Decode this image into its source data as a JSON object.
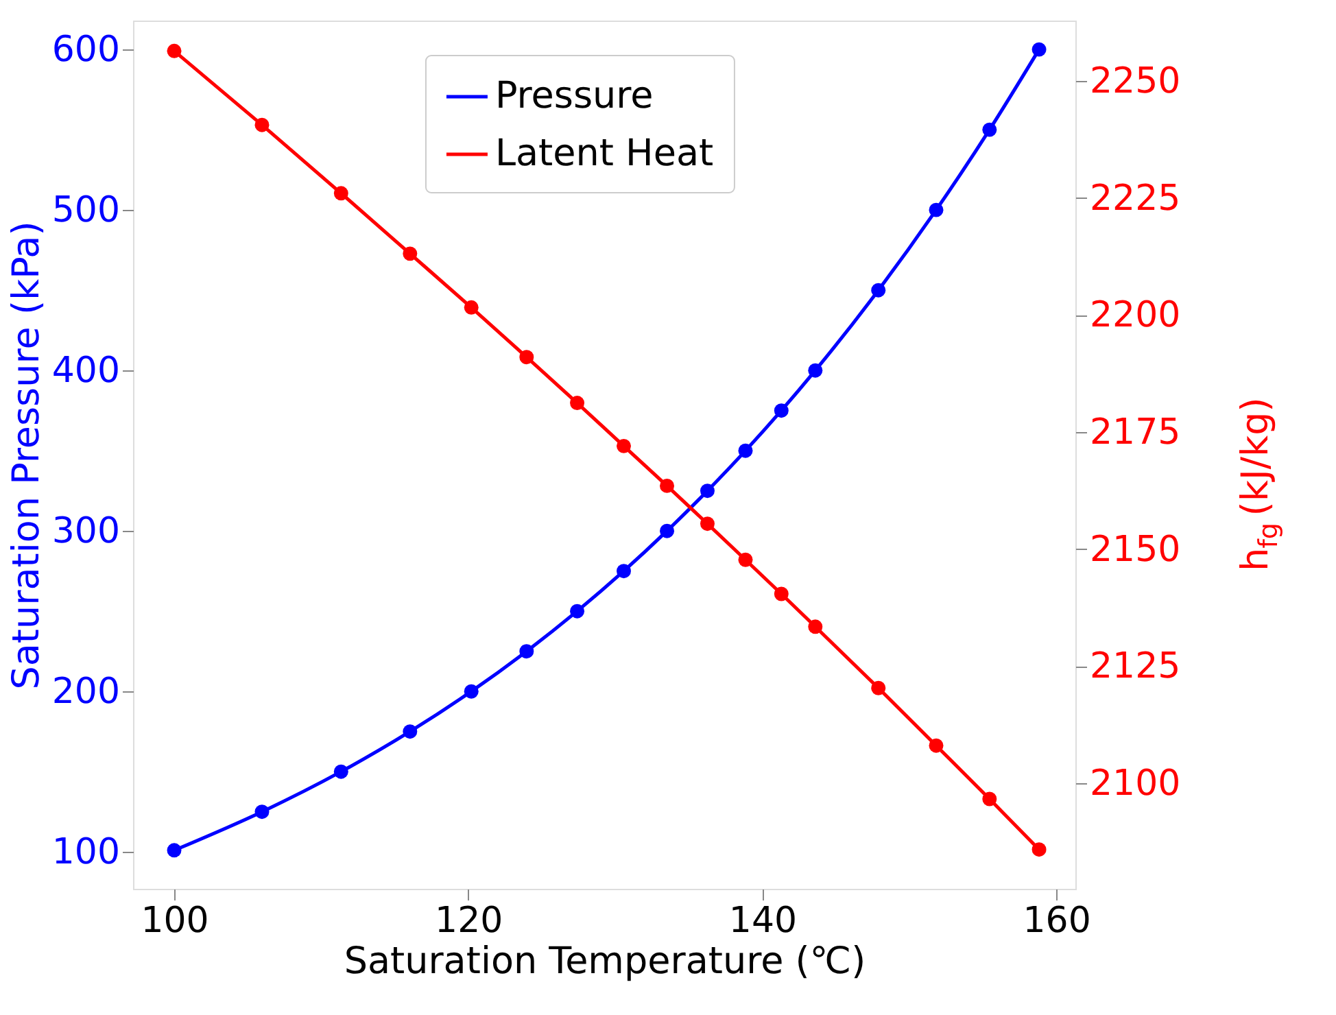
{
  "chart_data": {
    "type": "line",
    "xlabel": "Saturation Temperature (℃)",
    "ylabel": "Saturation Pressure (kPa)",
    "y2label": "h$_{fg}$ (kJ/kg)",
    "x": [
      100,
      105.97,
      111.35,
      116.04,
      120.21,
      123.97,
      127.41,
      130.58,
      133.52,
      136.27,
      138.86,
      141.3,
      143.61,
      147.9,
      151.83,
      155.46,
      158.83
    ],
    "series": [
      {
        "name": "Pressure",
        "color": "#0000ff",
        "values": [
          101,
          125,
          150,
          175,
          200,
          225,
          250,
          275,
          300,
          325,
          350,
          375,
          400,
          450,
          500,
          550,
          600
        ]
      },
      {
        "name": "Latent Heat",
        "color": "#ff0000",
        "axis": "y2",
        "values": [
          2256.4,
          2240.6,
          2226.0,
          2213.1,
          2201.6,
          2191.0,
          2181.2,
          2172.0,
          2163.5,
          2155.4,
          2147.7,
          2140.4,
          2133.4,
          2120.3,
          2108.0,
          2096.6,
          2085.8
        ]
      }
    ],
    "xlim": [
      97.2,
      161.3
    ],
    "xticks": [
      100,
      120,
      140,
      160
    ],
    "ylim": [
      77,
      618
    ],
    "yticks": [
      100,
      200,
      300,
      400,
      500,
      600
    ],
    "y2lim": [
      2077.4,
      2262.9
    ],
    "y2ticks": [
      2100,
      2125,
      2150,
      2175,
      2200,
      2225,
      2250
    ],
    "marker": "circle",
    "line_style": "solid",
    "grid": false,
    "legend": "top"
  }
}
